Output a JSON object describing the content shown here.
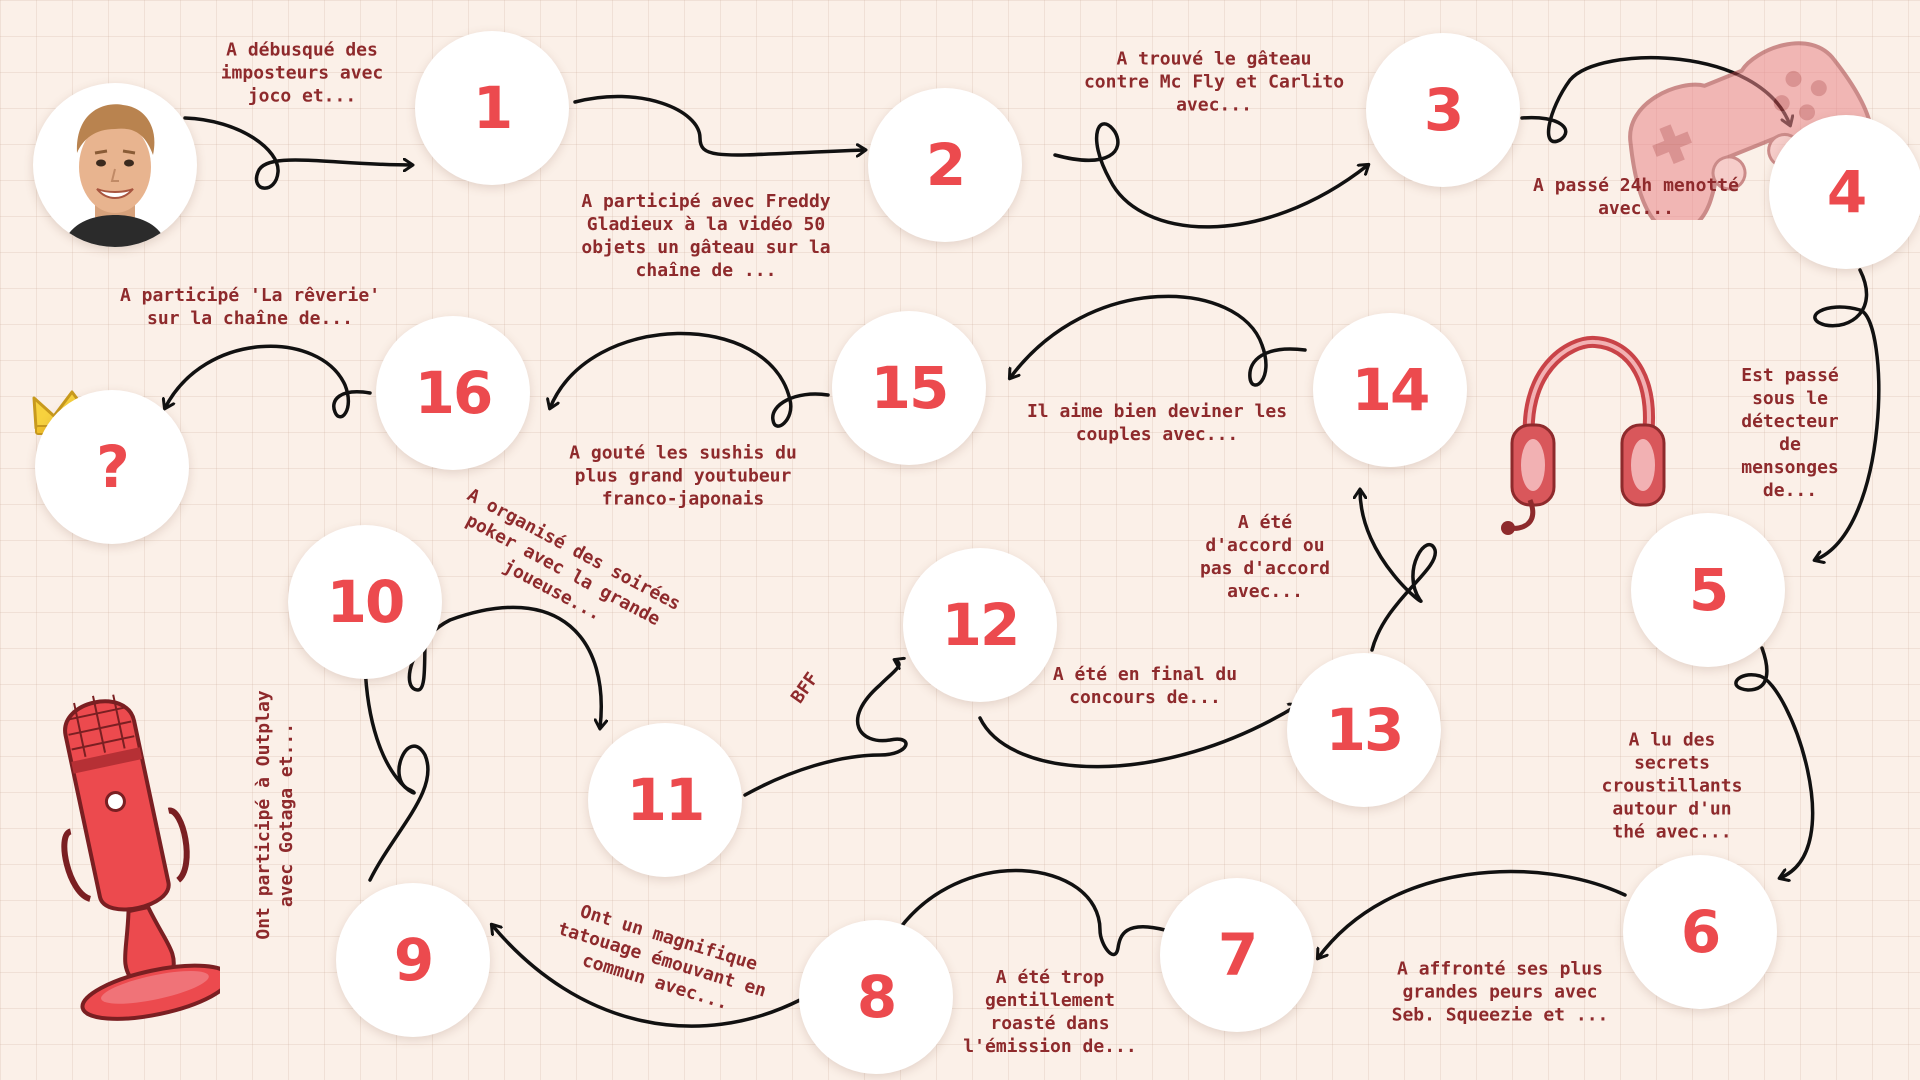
{
  "nodes": [
    {
      "id": "1",
      "label": "1"
    },
    {
      "id": "2",
      "label": "2"
    },
    {
      "id": "3",
      "label": "3"
    },
    {
      "id": "4",
      "label": "4"
    },
    {
      "id": "5",
      "label": "5"
    },
    {
      "id": "6",
      "label": "6"
    },
    {
      "id": "7",
      "label": "7"
    },
    {
      "id": "8",
      "label": "8"
    },
    {
      "id": "9",
      "label": "9"
    },
    {
      "id": "10",
      "label": "10"
    },
    {
      "id": "11",
      "label": "11"
    },
    {
      "id": "12",
      "label": "12"
    },
    {
      "id": "13",
      "label": "13"
    },
    {
      "id": "14",
      "label": "14"
    },
    {
      "id": "15",
      "label": "15"
    },
    {
      "id": "16",
      "label": "16"
    },
    {
      "id": "final",
      "label": "?"
    }
  ],
  "clues": {
    "c1": "A débusqué des\nimposteurs avec\njoco et...",
    "c2": "A participé avec Freddy\nGladieux à la vidéo 50\nobjets un gâteau sur la\nchaîne de ...",
    "c3": "A trouvé le gâteau\ncontre Mc Fly et Carlito\navec...",
    "c4": "A passé 24h menotté\navec...",
    "c5": "Est passé\nsous le\ndétecteur\nde\nmensonges\nde...",
    "c6": "A lu des\nsecrets\ncroustillants\nautour d'un\nthé avec...",
    "c7": "A affronté ses plus\ngrandes peurs avec\nSeb. Squeezie et ...",
    "c8": "A été trop\ngentillement\nroasté dans\nl'émission de...",
    "c9": "Ont un magnifique\ntatouage émouvant en\ncommun avec...",
    "c10": "Ont participé à Outplay\navec Gotaga et...",
    "c11": "A organisé des soirées\npoker avec la grande\njoueuse...",
    "c12": "BFF",
    "c13": "A été en final du\nconcours de...",
    "c14": "A été\nd'accord ou\npas d'accord\navec...",
    "c15": "Il aime bien deviner les\ncouples avec...",
    "c16": "A gouté les sushis du\nplus grand youtubeur\nfranco-japonais",
    "cfinal": "A participé 'La rêverie'\nsur la chaîne de..."
  },
  "colors": {
    "background": "#fbf0e8",
    "accent": "#ec4a4e",
    "label_text": "#8e2a2c",
    "arrow": "#111111",
    "node": "#ffffff",
    "crown": "#f7d23e"
  },
  "decorations": [
    "avatar-portrait",
    "crown-icon",
    "gamepad-icon",
    "headset-icon",
    "microphone-icon"
  ]
}
